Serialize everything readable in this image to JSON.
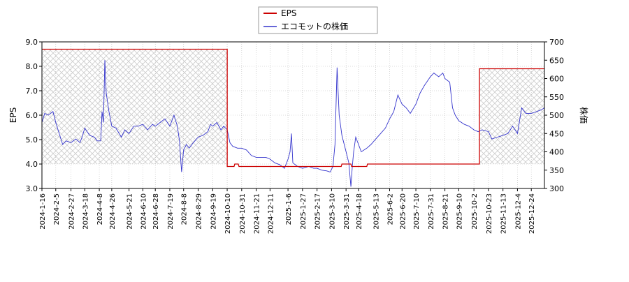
{
  "chart_data": {
    "type": "line",
    "title": "",
    "xlabel": "",
    "ylabel": "EPS",
    "y2label": "株価",
    "legend": {
      "placement": "top-center",
      "entries": [
        "EPS",
        "エコモットの株価"
      ]
    },
    "grid": true,
    "ylim": [
      3.0,
      9.0
    ],
    "y2lim": [
      300,
      700
    ],
    "xlim": [
      "2024-01-16",
      "2026-01-12"
    ],
    "yticks": [
      "3.0",
      "4.0",
      "5.0",
      "6.0",
      "7.0",
      "8.0",
      "9.0"
    ],
    "y2ticks": [
      "300",
      "350",
      "400",
      "450",
      "500",
      "550",
      "600",
      "650",
      "700"
    ],
    "xticks": [
      "2024-1-16",
      "2024-2-5",
      "2024-2-27",
      "2024-3-18",
      "2024-4-8",
      "2024-4-26",
      "2024-5-21",
      "2024-6-10",
      "2024-6-28",
      "2024-7-19",
      "2024-8-8",
      "2024-8-29",
      "2024-9-19",
      "2024-10-10",
      "2024-10-31",
      "2024-11-21",
      "2024-12-11",
      "2025-1-6",
      "2025-1-27",
      "2025-2-17",
      "2025-3-10",
      "2025-3-31",
      "2025-4-18",
      "2025-5-13",
      "2025-6-2",
      "2025-6-20",
      "2025-7-10",
      "2025-7-31",
      "2025-8-21",
      "2025-9-10",
      "2025-10-2",
      "2025-10-23",
      "2025-11-13",
      "2025-12-4",
      "2025-12-24"
    ],
    "colors": {
      "eps": "#cc0000",
      "price": "#3333cc",
      "hatch": "#cccccc"
    },
    "eps_periods": [
      {
        "start": "2024-01-16",
        "end": "2024-10-10",
        "value": 8.7
      },
      {
        "start": "2024-10-11",
        "end": "2024-10-20",
        "value": 3.9
      },
      {
        "start": "2024-10-21",
        "end": "2024-10-26",
        "value": 4.0
      },
      {
        "start": "2024-10-27",
        "end": "2025-03-24",
        "value": 3.9
      },
      {
        "start": "2025-03-25",
        "end": "2025-04-07",
        "value": 4.0
      },
      {
        "start": "2025-04-08",
        "end": "2025-04-30",
        "value": 3.9
      },
      {
        "start": "2025-05-01",
        "end": "2025-10-10",
        "value": 4.0
      },
      {
        "start": "2025-10-11",
        "end": "2026-01-12",
        "value": 7.9
      }
    ],
    "series": [
      {
        "name": "EPS",
        "axis": "left",
        "points": [
          [
            "2024-01-16",
            8.7
          ],
          [
            "2024-10-10",
            8.7
          ],
          [
            "2024-10-10",
            3.9
          ],
          [
            "2024-10-20",
            3.9
          ],
          [
            "2024-10-21",
            4.0
          ],
          [
            "2024-10-26",
            4.0
          ],
          [
            "2024-10-27",
            3.9
          ],
          [
            "2025-03-24",
            3.9
          ],
          [
            "2025-03-25",
            4.0
          ],
          [
            "2025-04-07",
            4.0
          ],
          [
            "2025-04-08",
            3.9
          ],
          [
            "2025-04-30",
            3.9
          ],
          [
            "2025-05-01",
            4.0
          ],
          [
            "2025-10-10",
            4.0
          ],
          [
            "2025-10-10",
            7.9
          ],
          [
            "2026-01-12",
            7.9
          ]
        ]
      },
      {
        "name": "エコモットの株価",
        "axis": "right",
        "points": [
          [
            "2024-01-16",
            480
          ],
          [
            "2024-01-20",
            505
          ],
          [
            "2024-01-25",
            500
          ],
          [
            "2024-02-01",
            510
          ],
          [
            "2024-02-05",
            480
          ],
          [
            "2024-02-10",
            450
          ],
          [
            "2024-02-15",
            420
          ],
          [
            "2024-02-20",
            430
          ],
          [
            "2024-02-27",
            425
          ],
          [
            "2024-03-05",
            435
          ],
          [
            "2024-03-11",
            425
          ],
          [
            "2024-03-14",
            440
          ],
          [
            "2024-03-18",
            465
          ],
          [
            "2024-03-25",
            445
          ],
          [
            "2024-04-01",
            440
          ],
          [
            "2024-04-05",
            430
          ],
          [
            "2024-04-10",
            430
          ],
          [
            "2024-04-12",
            510
          ],
          [
            "2024-04-14",
            480
          ],
          [
            "2024-04-16",
            650
          ],
          [
            "2024-04-18",
            560
          ],
          [
            "2024-04-22",
            510
          ],
          [
            "2024-04-26",
            470
          ],
          [
            "2024-05-02",
            465
          ],
          [
            "2024-05-10",
            440
          ],
          [
            "2024-05-15",
            460
          ],
          [
            "2024-05-21",
            450
          ],
          [
            "2024-05-28",
            470
          ],
          [
            "2024-06-03",
            470
          ],
          [
            "2024-06-10",
            475
          ],
          [
            "2024-06-17",
            460
          ],
          [
            "2024-06-24",
            475
          ],
          [
            "2024-06-28",
            470
          ],
          [
            "2024-07-05",
            480
          ],
          [
            "2024-07-12",
            490
          ],
          [
            "2024-07-19",
            470
          ],
          [
            "2024-07-25",
            500
          ],
          [
            "2024-07-30",
            470
          ],
          [
            "2024-08-02",
            430
          ],
          [
            "2024-08-05",
            345
          ],
          [
            "2024-08-08",
            405
          ],
          [
            "2024-08-12",
            420
          ],
          [
            "2024-08-16",
            410
          ],
          [
            "2024-08-22",
            425
          ],
          [
            "2024-08-29",
            440
          ],
          [
            "2024-09-05",
            445
          ],
          [
            "2024-09-12",
            455
          ],
          [
            "2024-09-16",
            475
          ],
          [
            "2024-09-19",
            470
          ],
          [
            "2024-09-25",
            480
          ],
          [
            "2024-10-01",
            460
          ],
          [
            "2024-10-05",
            470
          ],
          [
            "2024-10-10",
            460
          ],
          [
            "2024-10-14",
            425
          ],
          [
            "2024-10-18",
            415
          ],
          [
            "2024-10-25",
            410
          ],
          [
            "2024-10-31",
            410
          ],
          [
            "2024-11-07",
            405
          ],
          [
            "2024-11-14",
            390
          ],
          [
            "2024-11-21",
            385
          ],
          [
            "2024-11-28",
            385
          ],
          [
            "2024-12-05",
            385
          ],
          [
            "2024-12-11",
            380
          ],
          [
            "2024-12-18",
            370
          ],
          [
            "2024-12-25",
            365
          ],
          [
            "2025-01-01",
            355
          ],
          [
            "2025-01-06",
            380
          ],
          [
            "2025-01-09",
            400
          ],
          [
            "2025-01-11",
            450
          ],
          [
            "2025-01-13",
            370
          ],
          [
            "2025-01-20",
            360
          ],
          [
            "2025-01-27",
            355
          ],
          [
            "2025-02-05",
            360
          ],
          [
            "2025-02-12",
            355
          ],
          [
            "2025-02-17",
            355
          ],
          [
            "2025-02-24",
            350
          ],
          [
            "2025-03-03",
            348
          ],
          [
            "2025-03-08",
            345
          ],
          [
            "2025-03-12",
            360
          ],
          [
            "2025-03-15",
            420
          ],
          [
            "2025-03-18",
            630
          ],
          [
            "2025-03-21",
            500
          ],
          [
            "2025-03-25",
            445
          ],
          [
            "2025-03-31",
            400
          ],
          [
            "2025-04-04",
            370
          ],
          [
            "2025-04-07",
            305
          ],
          [
            "2025-04-09",
            360
          ],
          [
            "2025-04-11",
            400
          ],
          [
            "2025-04-14",
            440
          ],
          [
            "2025-04-18",
            420
          ],
          [
            "2025-04-22",
            400
          ],
          [
            "2025-04-30",
            410
          ],
          [
            "2025-05-06",
            420
          ],
          [
            "2025-05-13",
            435
          ],
          [
            "2025-05-20",
            450
          ],
          [
            "2025-05-27",
            465
          ],
          [
            "2025-06-02",
            490
          ],
          [
            "2025-06-08",
            510
          ],
          [
            "2025-06-14",
            555
          ],
          [
            "2025-06-20",
            530
          ],
          [
            "2025-06-26",
            520
          ],
          [
            "2025-07-02",
            505
          ],
          [
            "2025-07-10",
            530
          ],
          [
            "2025-07-16",
            560
          ],
          [
            "2025-07-22",
            580
          ],
          [
            "2025-07-31",
            605
          ],
          [
            "2025-08-05",
            615
          ],
          [
            "2025-08-12",
            605
          ],
          [
            "2025-08-18",
            615
          ],
          [
            "2025-08-21",
            600
          ],
          [
            "2025-08-28",
            590
          ],
          [
            "2025-09-01",
            520
          ],
          [
            "2025-09-05",
            500
          ],
          [
            "2025-09-10",
            485
          ],
          [
            "2025-09-18",
            475
          ],
          [
            "2025-09-25",
            470
          ],
          [
            "2025-10-02",
            460
          ],
          [
            "2025-10-08",
            455
          ],
          [
            "2025-10-14",
            460
          ],
          [
            "2025-10-23",
            455
          ],
          [
            "2025-10-28",
            435
          ],
          [
            "2025-11-05",
            440
          ],
          [
            "2025-11-13",
            445
          ],
          [
            "2025-11-20",
            450
          ],
          [
            "2025-11-27",
            470
          ],
          [
            "2025-12-04",
            450
          ],
          [
            "2025-12-10",
            520
          ],
          [
            "2025-12-16",
            505
          ],
          [
            "2025-12-24",
            505
          ],
          [
            "2026-01-01",
            510
          ],
          [
            "2026-01-08",
            515
          ],
          [
            "2026-01-12",
            520
          ]
        ]
      }
    ]
  }
}
